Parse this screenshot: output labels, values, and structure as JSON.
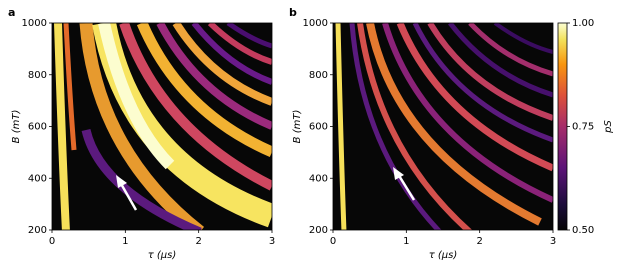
{
  "chart_data": [
    {
      "type": "heatmap",
      "panel_label": "a",
      "xlabel": "τ (µs)",
      "ylabel": "B (mT)",
      "xlim": [
        0,
        3
      ],
      "ylim": [
        200,
        1000
      ],
      "xticks": [
        0,
        1,
        2,
        3
      ],
      "yticks": [
        200,
        400,
        600,
        800,
        1000
      ]
    },
    {
      "type": "heatmap",
      "panel_label": "b",
      "xlabel": "τ (µs)",
      "ylabel": "B (mT)",
      "xlim": [
        0,
        3
      ],
      "ylim": [
        200,
        1000
      ],
      "xticks": [
        0,
        1,
        2,
        3
      ],
      "yticks": [
        200,
        400,
        600,
        800,
        1000
      ],
      "colorbar": {
        "label": "pS",
        "lim": [
          0.5,
          1.0
        ],
        "ticks": [
          {
            "value": 0.5,
            "label": "0.50"
          },
          {
            "value": 0.75,
            "label": "0.75"
          },
          {
            "value": 1.0,
            "label": "1.00"
          }
        ]
      }
    }
  ]
}
